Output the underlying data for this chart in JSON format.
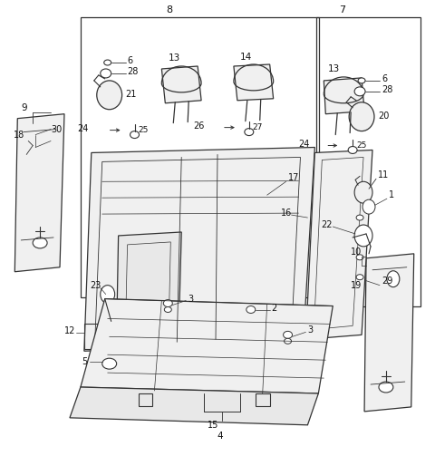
{
  "bg_color": "#ffffff",
  "line_color": "#333333",
  "fig_width": 4.8,
  "fig_height": 5.03,
  "dpi": 100
}
